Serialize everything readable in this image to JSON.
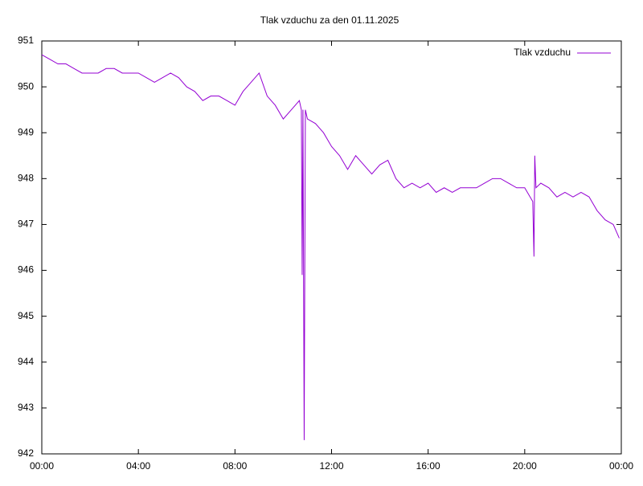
{
  "chart_data": {
    "type": "line",
    "title": "Tlak vzduchu za den 01.11.2025",
    "x": [
      0,
      20,
      40,
      60,
      80,
      100,
      120,
      140,
      160,
      180,
      200,
      220,
      240,
      260,
      280,
      300,
      320,
      340,
      360,
      380,
      400,
      420,
      440,
      460,
      480,
      500,
      520,
      540,
      560,
      580,
      600,
      620,
      640,
      645,
      647,
      649,
      652,
      655,
      660,
      680,
      700,
      720,
      740,
      760,
      780,
      800,
      820,
      840,
      860,
      880,
      900,
      920,
      940,
      960,
      980,
      1000,
      1020,
      1040,
      1060,
      1080,
      1100,
      1120,
      1140,
      1160,
      1180,
      1200,
      1220,
      1223,
      1225,
      1228,
      1240,
      1260,
      1280,
      1300,
      1320,
      1340,
      1360,
      1380,
      1400,
      1420,
      1435
    ],
    "series": [
      {
        "name": "Tlak vzduchu",
        "color": "#9400d3",
        "values": [
          950.7,
          950.6,
          950.5,
          950.5,
          950.4,
          950.3,
          950.3,
          950.3,
          950.4,
          950.4,
          950.3,
          950.3,
          950.3,
          950.2,
          950.1,
          950.2,
          950.3,
          950.2,
          950.0,
          949.9,
          949.7,
          949.8,
          949.8,
          949.7,
          949.6,
          949.9,
          950.1,
          950.3,
          949.8,
          949.6,
          949.3,
          949.5,
          949.7,
          949.5,
          945.9,
          949.5,
          942.3,
          949.5,
          949.3,
          949.2,
          949.0,
          948.7,
          948.5,
          948.2,
          948.5,
          948.3,
          948.1,
          948.3,
          948.4,
          948.0,
          947.8,
          947.9,
          947.8,
          947.9,
          947.7,
          947.8,
          947.7,
          947.8,
          947.8,
          947.8,
          947.9,
          948.0,
          948.0,
          947.9,
          947.8,
          947.8,
          947.5,
          946.3,
          948.5,
          947.8,
          947.9,
          947.8,
          947.6,
          947.7,
          947.6,
          947.7,
          947.6,
          947.3,
          947.1,
          947.0,
          946.7
        ]
      }
    ],
    "xlim": [
      0,
      1440
    ],
    "xticks": [
      {
        "value": 0,
        "label": "00:00"
      },
      {
        "value": 240,
        "label": "04:00"
      },
      {
        "value": 480,
        "label": "08:00"
      },
      {
        "value": 720,
        "label": "12:00"
      },
      {
        "value": 960,
        "label": "16:00"
      },
      {
        "value": 1200,
        "label": "20:00"
      },
      {
        "value": 1440,
        "label": "00:00"
      }
    ],
    "ylim": [
      942,
      951
    ],
    "yticks": [
      942,
      943,
      944,
      945,
      946,
      947,
      948,
      949,
      950,
      951
    ],
    "legend": "top-right",
    "grid": false
  }
}
